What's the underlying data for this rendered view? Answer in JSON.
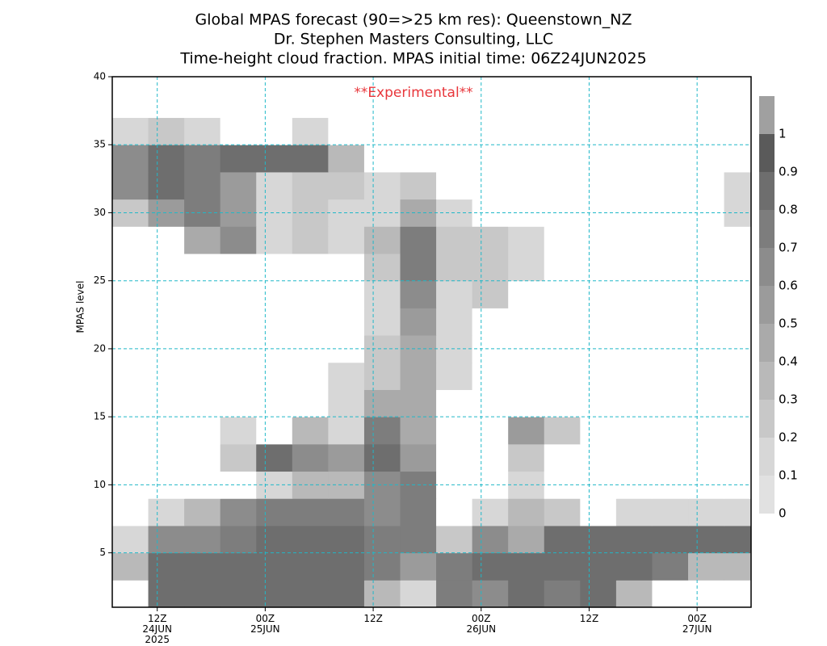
{
  "chart_data": {
    "type": "contour",
    "title": "Global MPAS forecast (90=>25 km res): Queenstown_NZ",
    "subtitle": "Dr. Stephen Masters Consulting, LLC",
    "subtitle2": "Time-height cloud fraction.   MPAS initial time: 06Z24JUN2025",
    "annotation": "**Experimental**",
    "annotation_color": "#e8363b",
    "y_label": "MPAS level",
    "xlim": [
      7,
      78
    ],
    "ylim": [
      1,
      40
    ],
    "xticks": [
      {
        "value": 12,
        "label": "12Z\n24JUN\n2025"
      },
      {
        "value": 24,
        "label": "00Z\n25JUN"
      },
      {
        "value": 36,
        "label": "12Z"
      },
      {
        "value": 48,
        "label": "00Z\n26JUN"
      },
      {
        "value": 60,
        "label": "12Z"
      },
      {
        "value": 72,
        "label": "00Z\n27JUN"
      }
    ],
    "yticks": [
      5,
      10,
      15,
      20,
      25,
      30,
      35,
      40
    ],
    "grid": true,
    "grid_color": "#20b8c8",
    "x": [
      9,
      13,
      17,
      21,
      25,
      29,
      33,
      37,
      41,
      45,
      49,
      53,
      57,
      61,
      65,
      69,
      73,
      77
    ],
    "y": [
      2,
      4,
      6,
      8,
      10,
      12,
      14,
      16,
      18,
      20,
      22,
      24,
      26,
      28,
      30,
      32,
      34,
      36,
      38,
      40
    ],
    "z": [
      [
        0,
        0.8,
        0.8,
        0.8,
        0.8,
        0.8,
        0.8,
        0.3,
        0.1,
        0.7,
        0.6,
        0.8,
        0.7,
        0.8,
        0.3,
        0,
        0,
        0
      ],
      [
        0.3,
        0.8,
        0.8,
        0.8,
        0.8,
        0.8,
        0.8,
        0.7,
        0.5,
        0.7,
        0.8,
        0.8,
        0.8,
        0.8,
        0.8,
        0.7,
        0.3,
        0.3
      ],
      [
        0.1,
        0.6,
        0.6,
        0.7,
        0.8,
        0.8,
        0.8,
        0.7,
        0.7,
        0.2,
        0.6,
        0.4,
        0.8,
        0.8,
        0.8,
        0.8,
        0.8,
        0.8
      ],
      [
        0,
        0.1,
        0.3,
        0.6,
        0.7,
        0.7,
        0.7,
        0.6,
        0.7,
        0,
        0.1,
        0.3,
        0.2,
        0,
        0.1,
        0.1,
        0.1,
        0.1
      ],
      [
        0,
        0,
        0,
        0,
        0.1,
        0.3,
        0.3,
        0.6,
        0.7,
        0,
        0,
        0.1,
        0,
        0,
        0,
        0,
        0,
        0
      ],
      [
        0,
        0,
        0,
        0.2,
        0.8,
        0.6,
        0.5,
        0.8,
        0.5,
        0,
        0,
        0.2,
        0,
        0,
        0,
        0,
        0,
        0
      ],
      [
        0,
        0,
        0,
        0.1,
        0,
        0.3,
        0.1,
        0.7,
        0.4,
        0,
        0,
        0.5,
        0.2,
        0,
        0,
        0,
        0,
        0
      ],
      [
        0,
        0,
        0,
        0,
        0,
        0,
        0.1,
        0.4,
        0.4,
        0,
        0,
        0,
        0,
        0,
        0,
        0,
        0,
        0
      ],
      [
        0,
        0,
        0,
        0,
        0,
        0,
        0.1,
        0.2,
        0.4,
        0.1,
        0,
        0,
        0,
        0,
        0,
        0,
        0,
        0
      ],
      [
        0,
        0,
        0,
        0,
        0,
        0,
        0,
        0.2,
        0.4,
        0.1,
        0,
        0,
        0,
        0,
        0,
        0,
        0,
        0
      ],
      [
        0,
        0,
        0,
        0,
        0,
        0,
        0,
        0.1,
        0.5,
        0.1,
        0,
        0,
        0,
        0,
        0,
        0,
        0,
        0
      ],
      [
        0,
        0,
        0,
        0,
        0,
        0,
        0,
        0.1,
        0.6,
        0.1,
        0.2,
        0,
        0,
        0,
        0,
        0,
        0,
        0
      ],
      [
        0,
        0,
        0,
        0,
        0,
        0,
        0,
        0.2,
        0.7,
        0.2,
        0.2,
        0.1,
        0,
        0,
        0,
        0,
        0,
        0
      ],
      [
        0,
        0,
        0.4,
        0.6,
        0.1,
        0.2,
        0.1,
        0.3,
        0.7,
        0.2,
        0.2,
        0.1,
        0,
        0,
        0,
        0,
        0,
        0
      ],
      [
        0.2,
        0.5,
        0.7,
        0.5,
        0.1,
        0.2,
        0.1,
        0.1,
        0.4,
        0.1,
        0,
        0,
        0,
        0,
        0,
        0,
        0,
        0.1
      ],
      [
        0.6,
        0.8,
        0.7,
        0.5,
        0.1,
        0.2,
        0.2,
        0.1,
        0.2,
        0,
        0,
        0,
        0,
        0,
        0,
        0,
        0,
        0.1
      ],
      [
        0.6,
        0.8,
        0.7,
        0.8,
        0.8,
        0.8,
        0.3,
        0,
        0,
        0,
        0,
        0,
        0,
        0,
        0,
        0,
        0,
        0
      ],
      [
        0.1,
        0.2,
        0.1,
        0,
        0,
        0.1,
        0,
        0,
        0,
        0,
        0,
        0,
        0,
        0,
        0,
        0,
        0,
        0
      ],
      [
        0,
        0,
        0,
        0,
        0,
        0,
        0,
        0,
        0,
        0,
        0,
        0,
        0,
        0,
        0,
        0,
        0,
        0
      ],
      [
        0,
        0,
        0,
        0,
        0,
        0,
        0,
        0,
        0,
        0,
        0,
        0,
        0,
        0,
        0,
        0,
        0,
        0
      ]
    ],
    "zero_color": "#ffffff",
    "levels": [
      0,
      0.1,
      0.2,
      0.3,
      0.4,
      0.5,
      0.6,
      0.7,
      0.8,
      0.9,
      1
    ],
    "colors": [
      "#e1e1e1",
      "#d7d7d7",
      "#c8c8c8",
      "#b9b9b9",
      "#aaaaaa",
      "#9b9b9b",
      "#8c8c8c",
      "#7d7d7d",
      "#6e6e6e",
      "#5a5a5a",
      "#a0a0a0"
    ]
  }
}
